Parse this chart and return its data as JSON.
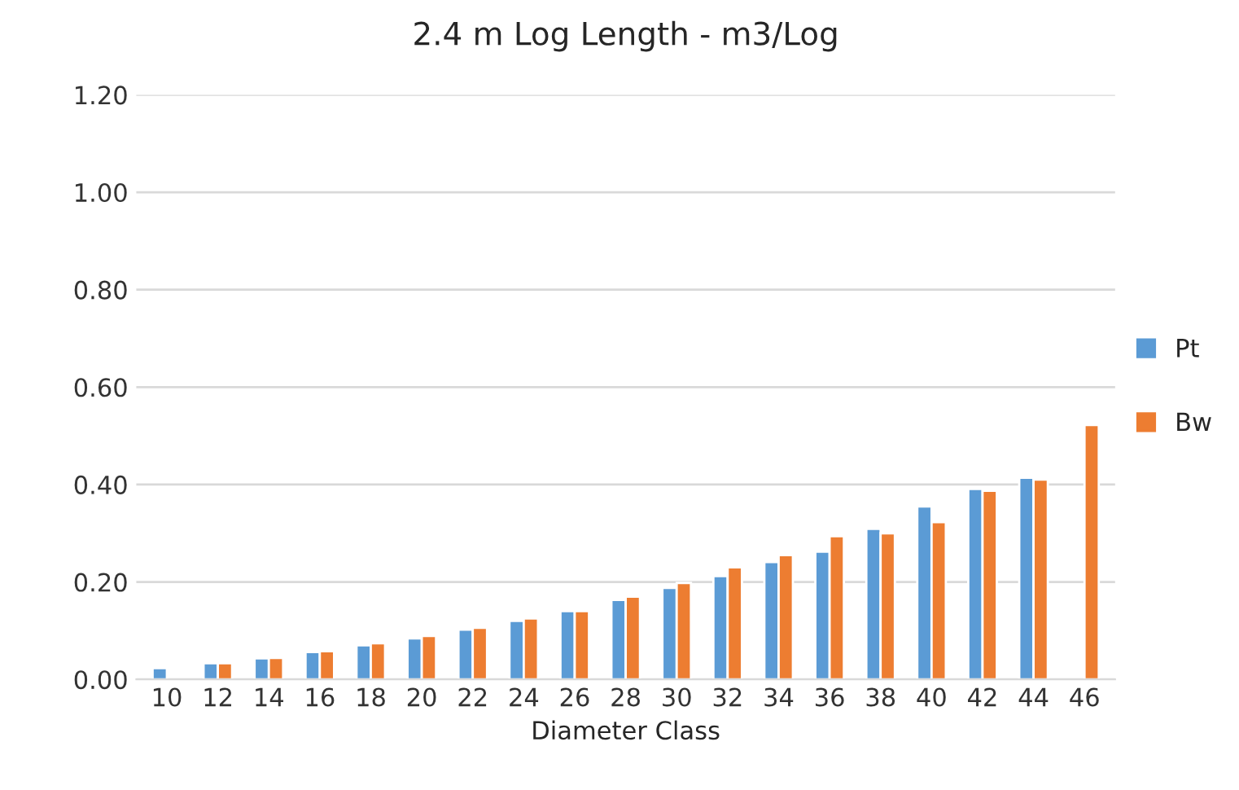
{
  "chart_data": {
    "type": "bar",
    "title": "2.4 m Log Length - m3/Log",
    "xlabel": "Diameter Class",
    "categories": [
      "10",
      "12",
      "14",
      "16",
      "18",
      "20",
      "22",
      "24",
      "26",
      "28",
      "30",
      "32",
      "34",
      "36",
      "38",
      "40",
      "42",
      "44",
      "46"
    ],
    "series": [
      {
        "name": "Pt",
        "color": "#5b9bd5",
        "values": [
          0.023,
          0.033,
          0.043,
          0.056,
          0.07,
          0.084,
          0.102,
          0.12,
          0.14,
          0.163,
          0.188,
          0.212,
          0.241,
          0.262,
          0.309,
          0.355,
          0.391,
          0.414,
          null
        ]
      },
      {
        "name": "Bw",
        "color": "#ed7d31",
        "values": [
          null,
          0.033,
          0.044,
          0.058,
          0.074,
          0.089,
          0.106,
          0.125,
          0.14,
          0.17,
          0.198,
          0.23,
          0.255,
          0.294,
          0.3,
          0.323,
          0.387,
          0.41,
          0.522
        ]
      }
    ],
    "ylim": [
      0,
      1.2
    ],
    "yticks": [
      {
        "value": 0,
        "label": "0.00"
      },
      {
        "value": 0.2,
        "label": "0.20"
      },
      {
        "value": 0.4,
        "label": "0.40"
      },
      {
        "value": 0.6,
        "label": "0.60"
      },
      {
        "value": 0.8,
        "label": "0.80"
      },
      {
        "value": 1.0,
        "label": "1.00"
      },
      {
        "value": 1.2,
        "label": "1.20"
      }
    ],
    "grid": "y",
    "legend": "right"
  }
}
